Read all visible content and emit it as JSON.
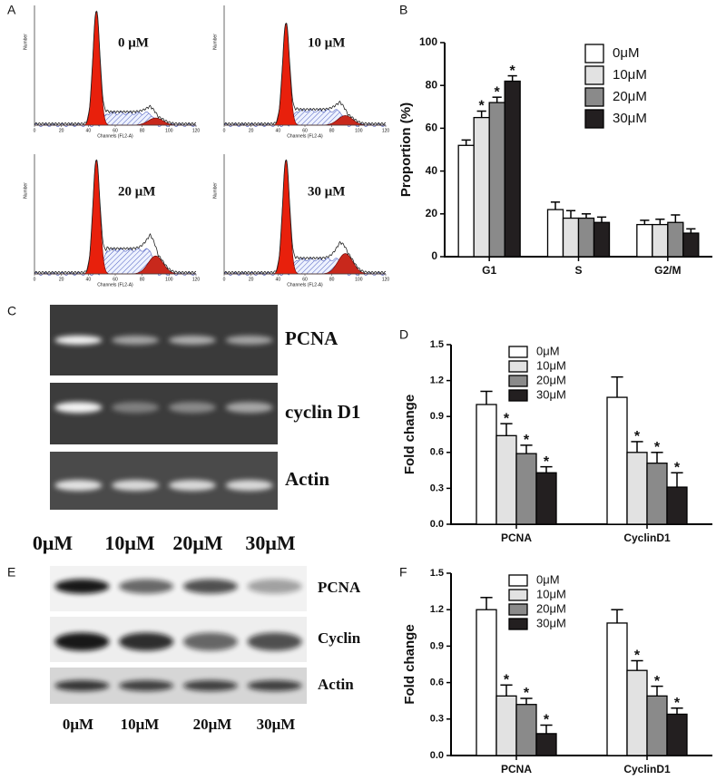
{
  "panel_a": {
    "label": "A",
    "x_label": "Channels (FL2-A)",
    "y_label": "Number",
    "xlim": [
      0,
      120
    ],
    "xticks": [
      0,
      20,
      40,
      60,
      80,
      100,
      120
    ],
    "plots": [
      "0 μM",
      "10 μM",
      "20 μM",
      "30 μM"
    ]
  },
  "panel_c": {
    "label": "C",
    "rows": [
      "PCNA",
      "cyclin D1",
      "Actin"
    ],
    "lanes": [
      "0μM",
      "10μM",
      "20μM",
      "30μM"
    ]
  },
  "panel_e": {
    "label": "E",
    "rows": [
      "PCNA",
      "Cyclin",
      "Actin"
    ],
    "lanes": [
      "0μM",
      "10μM",
      "20μM",
      "30μM"
    ]
  },
  "chart_data": [
    {
      "type": "bar",
      "panel_label": "B",
      "y_label": "Proportion (%)",
      "categories": [
        "G1",
        "S",
        "G2/M"
      ],
      "ylim": [
        0,
        100
      ],
      "yticks": [
        0,
        20,
        40,
        60,
        80,
        100
      ],
      "legend": "upper right",
      "series": [
        {
          "name": "0μM",
          "color": "#ffffff",
          "values": [
            52,
            22,
            15
          ],
          "errors": [
            2.5,
            3.5,
            2
          ],
          "significance": [
            null,
            null,
            null
          ]
        },
        {
          "name": "10μM",
          "color": "#e2e2e2",
          "values": [
            65,
            18,
            15
          ],
          "errors": [
            3,
            3.5,
            2.5
          ],
          "significance": [
            "*",
            null,
            null
          ]
        },
        {
          "name": "20μM",
          "color": "#8a8a8a",
          "values": [
            72,
            18,
            16
          ],
          "errors": [
            2.5,
            2,
            3.5
          ],
          "significance": [
            "*",
            null,
            null
          ]
        },
        {
          "name": "30μM",
          "color": "#231f20",
          "values": [
            82,
            16,
            11
          ],
          "errors": [
            2.5,
            2.5,
            2
          ],
          "significance": [
            "*",
            null,
            null
          ]
        }
      ]
    },
    {
      "type": "bar",
      "panel_label": "D",
      "y_label": "Fold change",
      "categories": [
        "PCNA",
        "CyclinD1"
      ],
      "ylim": [
        0,
        1.5
      ],
      "yticks": [
        {
          "value": 0,
          "label": "0.0"
        },
        0.3,
        0.6,
        0.9,
        1.2,
        1.5
      ],
      "legend": "upper center",
      "series": [
        {
          "name": "0μM",
          "color": "#ffffff",
          "values": [
            1.0,
            1.06
          ],
          "errors": [
            0.11,
            0.17
          ],
          "significance": [
            null,
            null
          ]
        },
        {
          "name": "10μM",
          "color": "#e2e2e2",
          "values": [
            0.74,
            0.6
          ],
          "errors": [
            0.1,
            0.09
          ],
          "significance": [
            "*",
            "*"
          ]
        },
        {
          "name": "20μM",
          "color": "#8a8a8a",
          "values": [
            0.59,
            0.51
          ],
          "errors": [
            0.07,
            0.09
          ],
          "significance": [
            "*",
            "*"
          ]
        },
        {
          "name": "30μM",
          "color": "#231f20",
          "values": [
            0.43,
            0.31
          ],
          "errors": [
            0.05,
            0.12
          ],
          "significance": [
            "*",
            "*"
          ]
        }
      ]
    },
    {
      "type": "bar",
      "panel_label": "F",
      "y_label": "Fold change",
      "categories": [
        "PCNA",
        "CyclinD1"
      ],
      "ylim": [
        0,
        1.5
      ],
      "yticks": [
        {
          "value": 0,
          "label": "0.0"
        },
        0.3,
        0.6,
        0.9,
        1.2,
        1.5
      ],
      "legend": "upper center",
      "series": [
        {
          "name": "0μM",
          "color": "#ffffff",
          "values": [
            1.2,
            1.09
          ],
          "errors": [
            0.1,
            0.11
          ],
          "significance": [
            null,
            null
          ]
        },
        {
          "name": "10μM",
          "color": "#e2e2e2",
          "values": [
            0.49,
            0.7
          ],
          "errors": [
            0.09,
            0.08
          ],
          "significance": [
            "*",
            "*"
          ]
        },
        {
          "name": "20μM",
          "color": "#8a8a8a",
          "values": [
            0.42,
            0.49
          ],
          "errors": [
            0.05,
            0.08
          ],
          "significance": [
            "*",
            "*"
          ]
        },
        {
          "name": "30μM",
          "color": "#231f20",
          "values": [
            0.18,
            0.34
          ],
          "errors": [
            0.07,
            0.05
          ],
          "significance": [
            "*",
            "*"
          ]
        }
      ]
    }
  ]
}
